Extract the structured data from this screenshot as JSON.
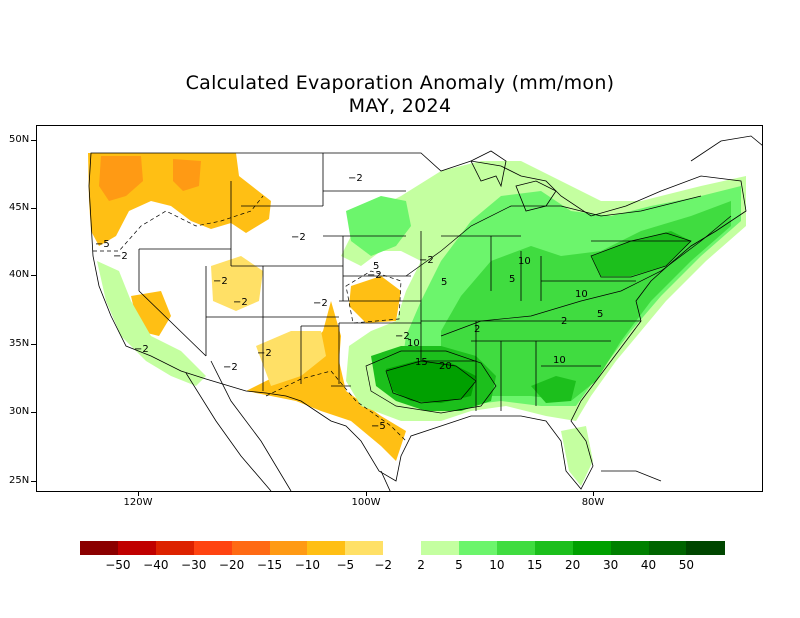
{
  "title": "Calculated Evaporation Anomaly (mm/mon)",
  "subtitle": "MAY, 2024",
  "lat_labels": [
    "50N",
    "45N",
    "40N",
    "35N",
    "30N",
    "25N"
  ],
  "lon_labels": [
    "120W",
    "100W",
    "80W"
  ],
  "legend": {
    "colors": [
      "#8b0000",
      "#c00000",
      "#dd2200",
      "#ff4411",
      "#ff6a14",
      "#ff9a14",
      "#ffbf14",
      "#ffe066",
      "#ffffff",
      "#c4ffa0",
      "#6cf56c",
      "#40dc40",
      "#1cbf1c",
      "#00a000",
      "#008000",
      "#006400",
      "#004600"
    ],
    "labels": [
      "−50",
      "−40",
      "−30",
      "−20",
      "−15",
      "−10",
      "−5",
      "−2",
      "2",
      "5",
      "10",
      "15",
      "20",
      "30",
      "40",
      "50"
    ]
  },
  "contour_labels": [
    "−5",
    "−2",
    "−2",
    "−2",
    "−2",
    "−2",
    "−2",
    "−2",
    "−2",
    "−2",
    "−2",
    "−2",
    "−2",
    "5",
    "5",
    "5",
    "10",
    "10",
    "10",
    "15",
    "20",
    "−5",
    "10",
    "2",
    "2",
    "5"
  ]
}
